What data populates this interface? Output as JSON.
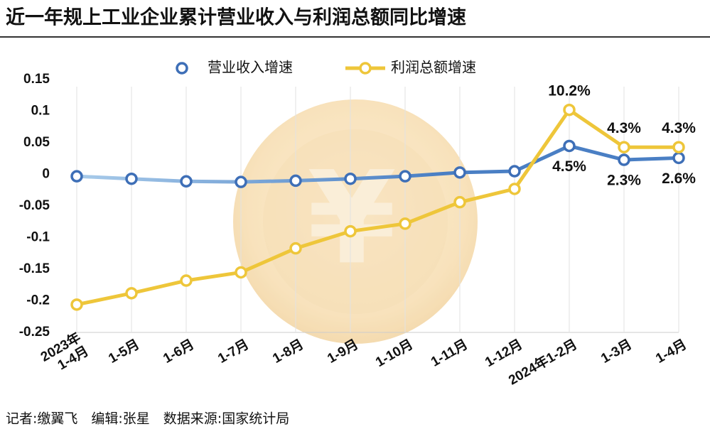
{
  "title": "近一年规上工业企业累计营业收入与利润总额同比增速",
  "footer": "记者:缴翼飞　编辑:张星　数据来源:国家统计局",
  "chart_data": {
    "type": "line",
    "categories": [
      "2023年\n1-4月",
      "1-5月",
      "1-6月",
      "1-7月",
      "1-8月",
      "1-9月",
      "1-10月",
      "1-11月",
      "1-12月",
      "2024年1-2月",
      "1-3月",
      "1-4月"
    ],
    "series": [
      {
        "name": "营业收入增速",
        "color": "#4a7fc4",
        "values": [
          -0.003,
          -0.007,
          -0.011,
          -0.012,
          -0.01,
          -0.007,
          -0.003,
          0.003,
          0.005,
          0.045,
          0.023,
          0.026
        ],
        "value_labels": [
          null,
          null,
          null,
          null,
          null,
          null,
          null,
          null,
          null,
          "4.5%",
          "2.3%",
          "2.6%"
        ]
      },
      {
        "name": "利润总额增速",
        "color": "#eec63a",
        "values": [
          -0.206,
          -0.188,
          -0.168,
          -0.155,
          -0.117,
          -0.09,
          -0.078,
          -0.044,
          -0.023,
          0.102,
          0.043,
          0.043
        ],
        "value_labels": [
          null,
          null,
          null,
          null,
          null,
          null,
          null,
          null,
          null,
          "10.2%",
          "4.3%",
          "4.3%"
        ]
      }
    ],
    "ylim": [
      -0.25,
      0.15
    ],
    "yticks": [
      0.15,
      0.1,
      0.05,
      0,
      -0.05,
      -0.1,
      -0.15,
      -0.2,
      -0.25
    ],
    "grid": "x"
  }
}
